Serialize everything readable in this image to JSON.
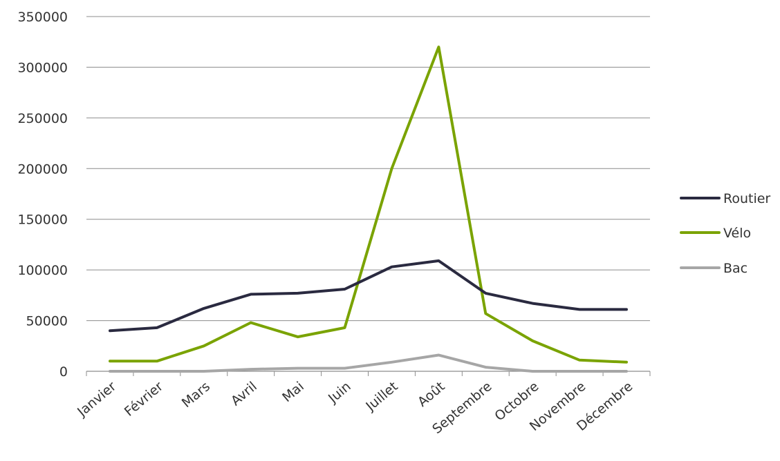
{
  "chart_data": {
    "type": "line",
    "title": "",
    "xlabel": "",
    "ylabel": "",
    "categories": [
      "Janvier",
      "Février",
      "Mars",
      "Avril",
      "Mai",
      "Juin",
      "Juillet",
      "Août",
      "Septembre",
      "Octobre",
      "Novembre",
      "Décembre"
    ],
    "ylim": [
      0,
      350000
    ],
    "yticks": [
      0,
      50000,
      100000,
      150000,
      200000,
      250000,
      300000,
      350000
    ],
    "ytick_labels": [
      "0",
      "50000",
      "100000",
      "150000",
      "200000",
      "250000",
      "300000",
      "350000"
    ],
    "grid": true,
    "legend_position": "right",
    "series": [
      {
        "name": "Routier",
        "color": "#2a2a40",
        "values": [
          40000,
          43000,
          62000,
          76000,
          77000,
          81000,
          103000,
          109000,
          77000,
          67000,
          61000,
          61000
        ]
      },
      {
        "name": "Vélo",
        "color": "#7aa300",
        "values": [
          10000,
          10000,
          25000,
          48000,
          34000,
          43000,
          200000,
          320000,
          57000,
          30000,
          11000,
          9000
        ]
      },
      {
        "name": "Bac",
        "color": "#a6a6a6",
        "values": [
          0,
          0,
          0,
          2000,
          3000,
          3000,
          9000,
          16000,
          4000,
          0,
          0,
          0
        ]
      }
    ]
  }
}
